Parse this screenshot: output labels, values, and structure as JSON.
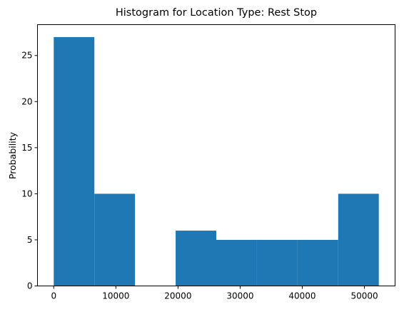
{
  "chart_data": {
    "type": "histogram",
    "title": "Histogram for Location Type: Rest Stop",
    "xlabel": "",
    "ylabel": "Probability",
    "bins": [
      {
        "start": 0,
        "end": 6540,
        "value": 27
      },
      {
        "start": 6540,
        "end": 13080,
        "value": 10
      },
      {
        "start": 13080,
        "end": 19620,
        "value": 0
      },
      {
        "start": 19620,
        "end": 26160,
        "value": 6
      },
      {
        "start": 26160,
        "end": 32700,
        "value": 5
      },
      {
        "start": 32700,
        "end": 39240,
        "value": 5
      },
      {
        "start": 39240,
        "end": 45780,
        "value": 5
      },
      {
        "start": 45780,
        "end": 52320,
        "value": 10
      }
    ],
    "xlim": [
      -2616,
      54936
    ],
    "ylim": [
      0,
      28.35
    ],
    "xticks": [
      0,
      10000,
      20000,
      30000,
      40000,
      50000
    ],
    "yticks": [
      0,
      5,
      10,
      15,
      20,
      25
    ],
    "bar_color": "#1f77b4",
    "grid": false
  }
}
